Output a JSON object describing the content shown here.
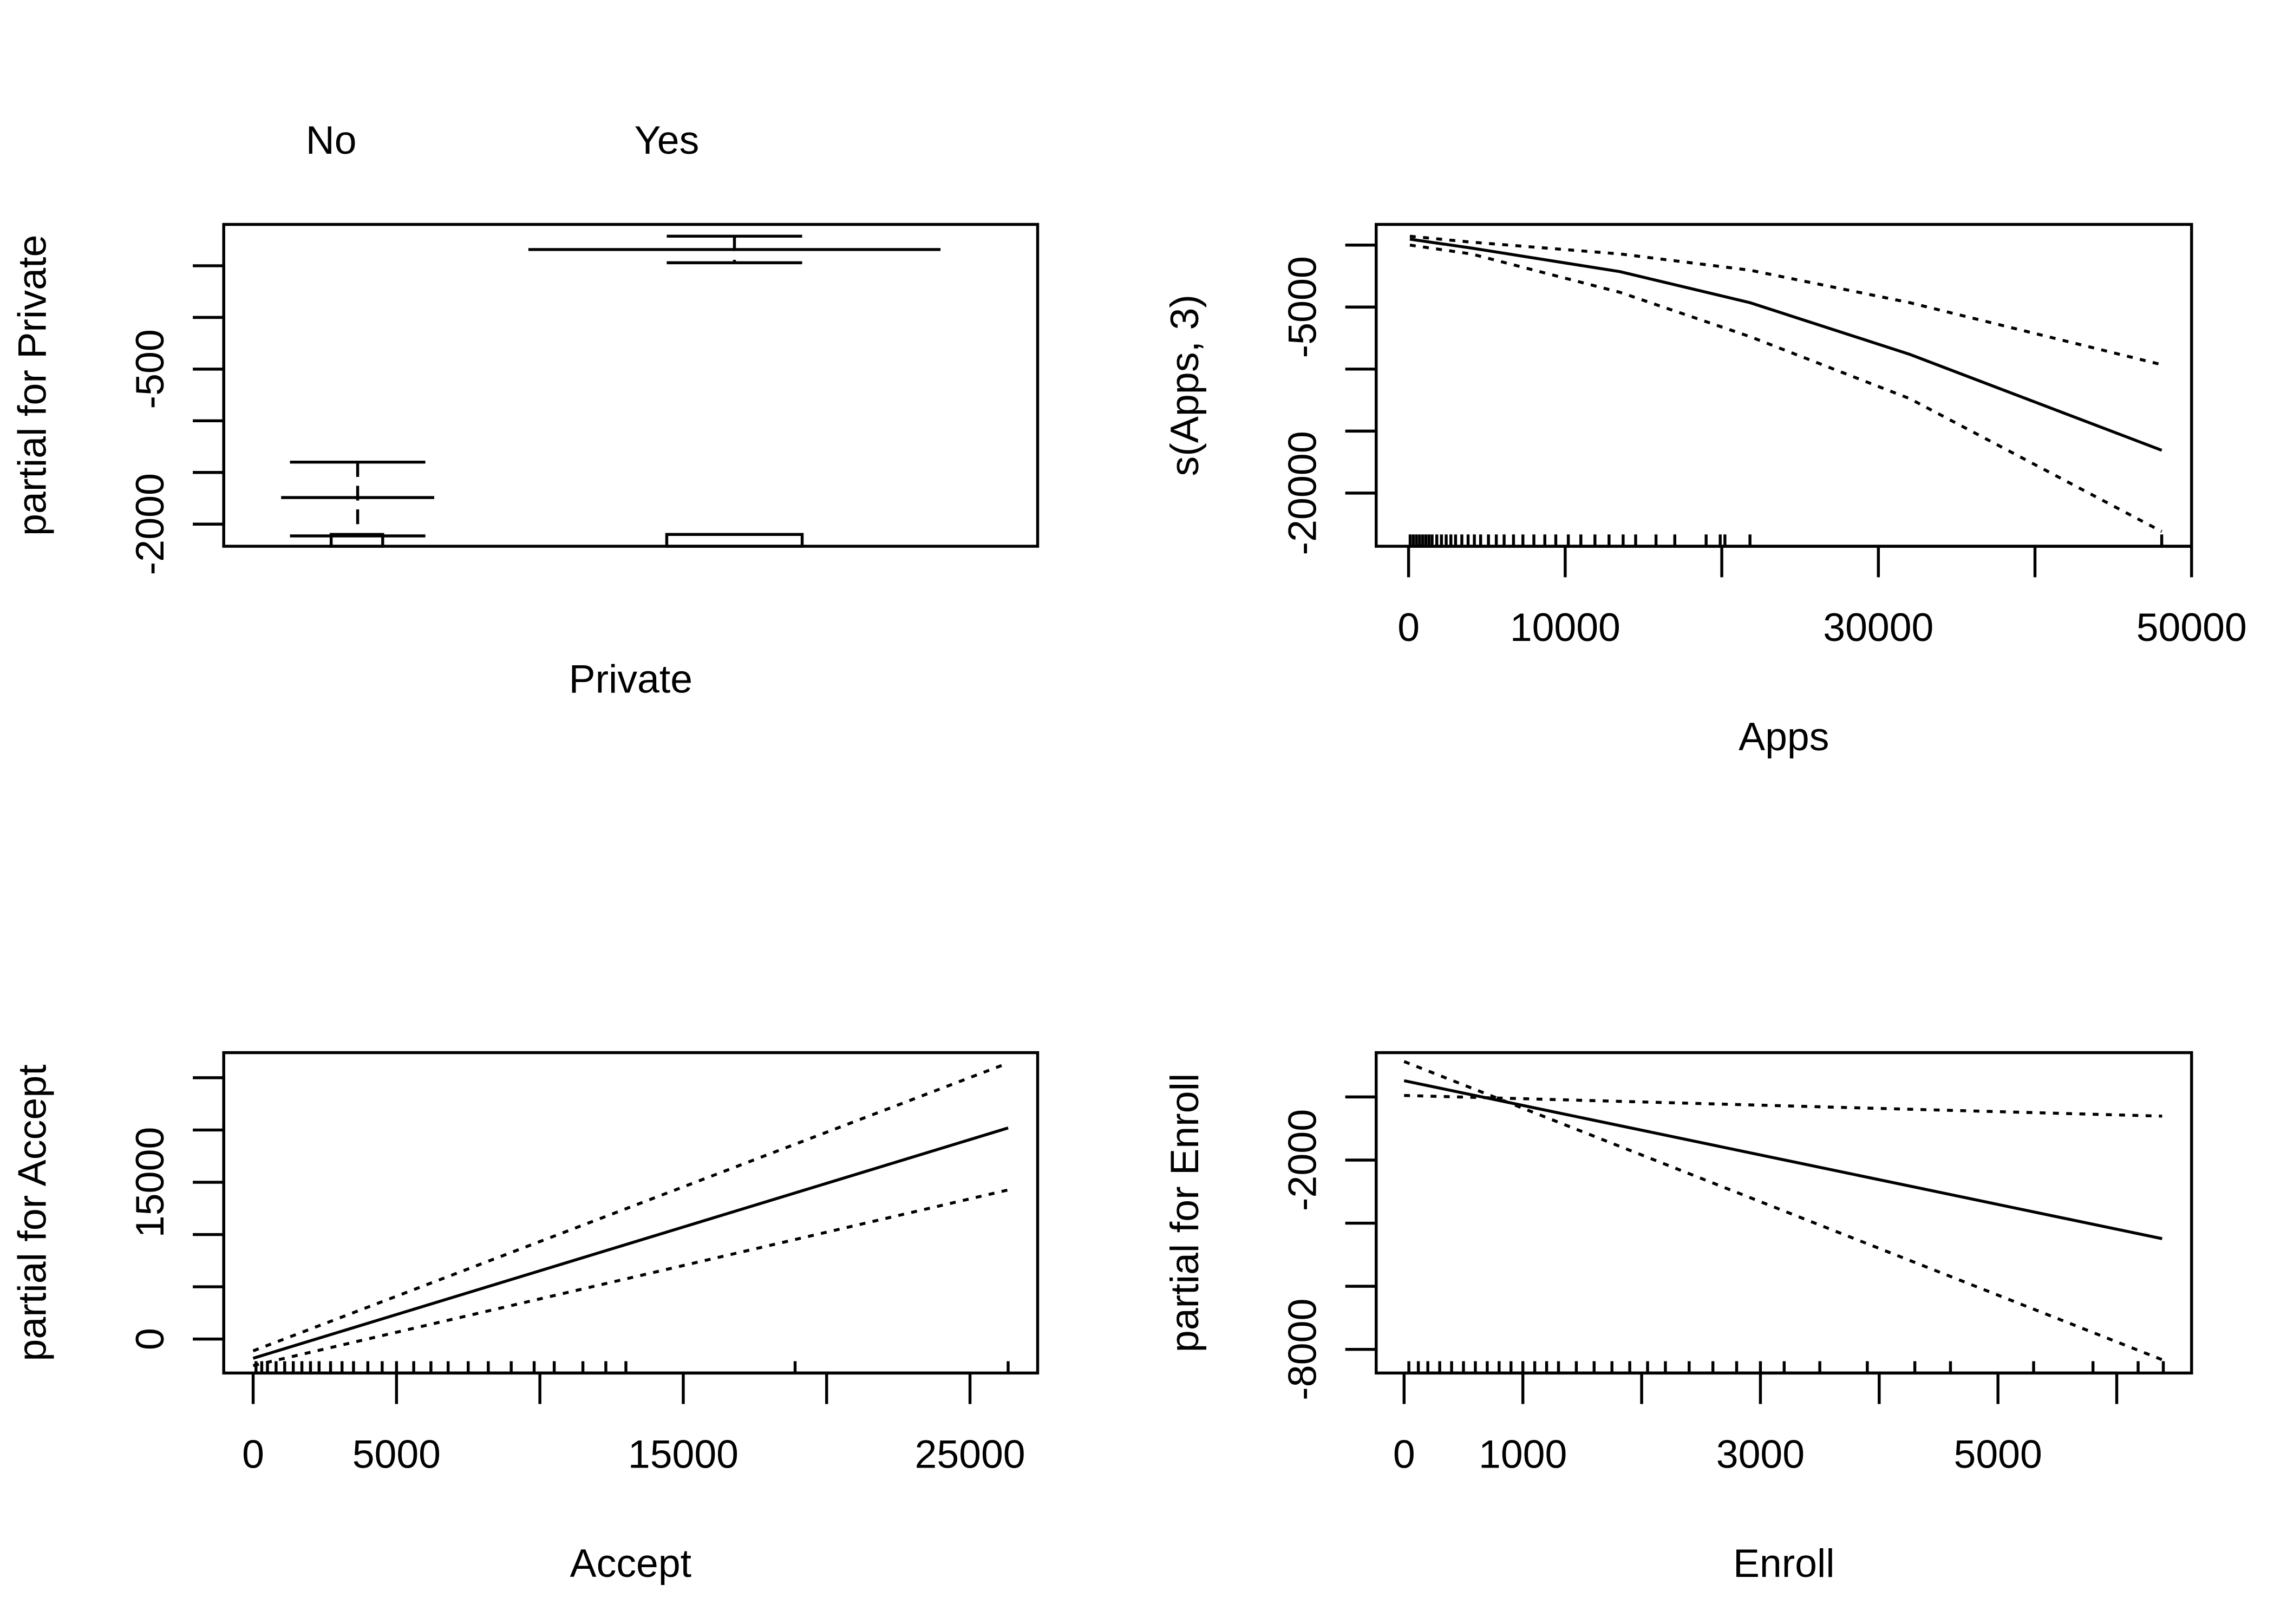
{
  "chart_data": [
    {
      "type": "factor",
      "xlabel": "Private",
      "ylabel": "partial for Private",
      "categories": [
        "No",
        "Yes"
      ],
      "values": [
        -1743,
        657
      ],
      "upper": [
        -1400,
        786
      ],
      "lower": [
        -2114,
        529
      ],
      "ylim": [
        -2214,
        900
      ],
      "yticks": [
        -2000,
        {
          "value": -1500,
          "label": null
        },
        {
          "value": -1000,
          "label": null
        },
        -500,
        {
          "value": 0,
          "label": null
        },
        {
          "value": 500,
          "label": null
        }
      ],
      "color": "#000000"
    },
    {
      "type": "line",
      "xlabel": "Apps",
      "ylabel": "s(Apps, 3)",
      "x": [
        81,
        4000,
        13500,
        21800,
        32000,
        48094
      ],
      "series": [
        {
          "values": [
            476,
            -238,
            -2143,
            -4643,
            -8810,
            -16548
          ],
          "dashed": false,
          "color": "#000000"
        },
        {
          "values": [
            714,
            238,
            -714,
            -2024,
            -4643,
            -9643
          ],
          "dashed": true,
          "color": "#000000"
        },
        {
          "values": [
            0,
            -714,
            -3810,
            -7381,
            -12381,
            -23095
          ],
          "dashed": true,
          "color": "#000000"
        }
      ],
      "rug": [
        100,
        300,
        500,
        700,
        900,
        1100,
        1300,
        1500,
        1800,
        2100,
        2400,
        2700,
        3000,
        3400,
        3800,
        4200,
        4600,
        5100,
        5600,
        6100,
        6700,
        7300,
        8000,
        8700,
        9400,
        10200,
        11000,
        11900,
        12800,
        13700,
        14500,
        15800,
        17000,
        19000,
        19900,
        20200,
        21800,
        48094
      ],
      "xlim": [
        -2070,
        50000
      ],
      "ylim": [
        -24286,
        1667
      ],
      "xticks": [
        0,
        10000,
        {
          "value": 20000,
          "label": null
        },
        30000,
        {
          "value": 40000,
          "label": null
        },
        50000
      ],
      "yticks": [
        {
          "value": 0,
          "label": null
        },
        -5000,
        {
          "value": -10000,
          "label": null
        },
        {
          "value": -15000,
          "label": null
        },
        -20000
      ]
    },
    {
      "type": "line",
      "xlabel": "Accept",
      "ylabel": "partial for Accept",
      "x": [
        0,
        26330
      ],
      "series": [
        {
          "values": [
            -1836,
            20198
          ],
          "dashed": false,
          "color": "#000000"
        },
        {
          "values": [
            -1130,
            26412
          ],
          "dashed": true,
          "color": "#000000"
        },
        {
          "values": [
            -2542,
            14266
          ],
          "dashed": true,
          "color": "#000000"
        }
      ],
      "rug": [
        100,
        300,
        500,
        800,
        1100,
        1400,
        1700,
        2000,
        2300,
        2700,
        3100,
        3500,
        4000,
        4500,
        5000,
        5600,
        6200,
        6800,
        7500,
        8200,
        9000,
        9800,
        10500,
        11500,
        12300,
        13000,
        18900,
        26330
      ],
      "xlim": [
        -1026,
        27359
      ],
      "ylim": [
        -3249,
        27401
      ],
      "xticks": [
        0,
        5000,
        {
          "value": 10000,
          "label": null
        },
        15000,
        {
          "value": 20000,
          "label": null
        },
        25000
      ],
      "yticks": [
        0,
        {
          "value": 5000,
          "label": null
        },
        {
          "value": 10000,
          "label": null
        },
        15000,
        {
          "value": 20000,
          "label": null
        },
        {
          "value": 25000,
          "label": null
        }
      ]
    },
    {
      "type": "line",
      "xlabel": "Enroll",
      "ylabel": "partial for Enroll",
      "x": [
        0,
        6382
      ],
      "series": [
        {
          "values": [
            515,
            -4491
          ],
          "dashed": false,
          "color": "#000000"
        },
        {
          "values": [
            47,
            -608
          ],
          "dashed": true,
          "color": "#000000"
        },
        {
          "values": [
            1123,
            -8327
          ],
          "dashed": true,
          "color": "#000000"
        }
      ],
      "rug": [
        40,
        120,
        200,
        300,
        400,
        500,
        600,
        700,
        800,
        900,
        1000,
        1100,
        1200,
        1300,
        1450,
        1600,
        1750,
        1900,
        2050,
        2200,
        2400,
        2600,
        2800,
        3000,
        3200,
        3500,
        3900,
        4300,
        4600,
        5300,
        5800,
        6180,
        6392
      ],
      "xlim": [
        -235,
        6630
      ],
      "ylim": [
        -8749,
        1404
      ],
      "xticks": [
        0,
        1000,
        {
          "value": 2000,
          "label": null
        },
        3000,
        {
          "value": 4000,
          "label": null
        },
        5000,
        {
          "value": 6000,
          "label": null
        }
      ],
      "yticks": [
        {
          "value": 0,
          "label": null
        },
        -2000,
        {
          "value": -4000,
          "label": null
        },
        {
          "value": -6000,
          "label": null
        },
        -8000
      ]
    }
  ]
}
